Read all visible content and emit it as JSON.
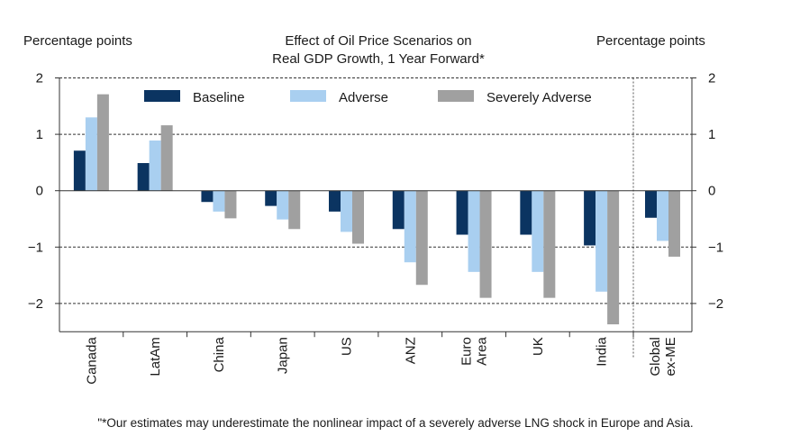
{
  "chart_data": {
    "type": "bar",
    "title": "Effect of Oil Price Scenarios on Real GDP Growth, 1 Year Forward*",
    "title_lines": [
      "Effect of Oil Price Scenarios on",
      "Real GDP Growth, 1 Year Forward*"
    ],
    "ylabel_left": "Percentage points",
    "ylabel_right": "Percentage points",
    "ylim": [
      -2.5,
      2
    ],
    "yticks": [
      2,
      1,
      0,
      -1,
      -2
    ],
    "ytick_labels": [
      "2",
      "1",
      "0",
      "−1",
      "−2"
    ],
    "grid": "dashed horizontal at ±1, ±2",
    "legend_position": "top",
    "categories": [
      "Canada",
      "LatAm",
      "China",
      "Japan",
      "US",
      "ANZ",
      "Euro Area",
      "UK",
      "India",
      "Global ex-ME"
    ],
    "category_lines": [
      [
        "Canada"
      ],
      [
        "LatAm"
      ],
      [
        "China"
      ],
      [
        "Japan"
      ],
      [
        "US"
      ],
      [
        "ANZ"
      ],
      [
        "Euro",
        "Area"
      ],
      [
        "UK"
      ],
      [
        "India"
      ],
      [
        "Global",
        "ex-ME"
      ]
    ],
    "series": [
      {
        "name": "Baseline",
        "color": "#0b3461",
        "values": [
          0.71,
          0.49,
          -0.2,
          -0.27,
          -0.37,
          -0.68,
          -0.78,
          -0.78,
          -0.97,
          -0.48
        ]
      },
      {
        "name": "Adverse",
        "color": "#a9cff0",
        "values": [
          1.3,
          0.89,
          -0.37,
          -0.51,
          -0.73,
          -1.27,
          -1.44,
          -1.44,
          -1.79,
          -0.89
        ]
      },
      {
        "name": "Severely Adverse",
        "color": "#a0a0a0",
        "values": [
          1.71,
          1.16,
          -0.49,
          -0.68,
          -0.94,
          -1.67,
          -1.9,
          -1.9,
          -2.37,
          -1.17
        ]
      }
    ],
    "footnote": "\"*Our estimates may underestimate the nonlinear impact of a severely adverse LNG shock in Europe and Asia."
  }
}
